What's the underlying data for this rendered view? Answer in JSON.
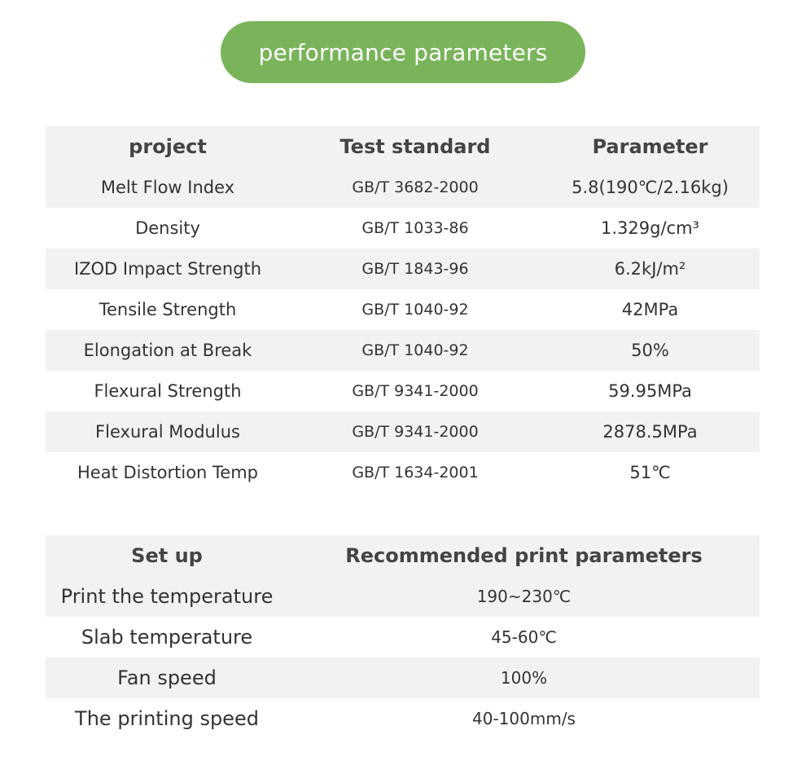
{
  "title": "performance parameters",
  "accent_color": "#79b45a",
  "performance_table": {
    "headers": [
      "project",
      "Test standard",
      "Parameter"
    ],
    "rows": [
      [
        "Melt Flow Index",
        "GB/T 3682-2000",
        "5.8(190℃/2.16kg)"
      ],
      [
        "Density",
        "GB/T 1033-86",
        "1.329g/cm³"
      ],
      [
        "IZOD Impact Strength",
        "GB/T 1843-96",
        "6.2kJ/m²"
      ],
      [
        "Tensile Strength",
        "GB/T 1040-92",
        "42MPa"
      ],
      [
        "Elongation at Break",
        "GB/T 1040-92",
        "50%"
      ],
      [
        "Flexural Strength",
        "GB/T 9341-2000",
        "59.95MPa"
      ],
      [
        "Flexural Modulus",
        "GB/T 9341-2000",
        "2878.5MPa"
      ],
      [
        "Heat Distortion Temp",
        "GB/T 1634-2001",
        "51℃"
      ]
    ]
  },
  "print_table": {
    "headers": [
      "Set up",
      "Recommended print parameters"
    ],
    "rows": [
      [
        "Print the temperature",
        "190~230℃"
      ],
      [
        "Slab temperature",
        "45-60℃"
      ],
      [
        "Fan speed",
        "100%"
      ],
      [
        "The printing speed",
        "40-100mm/s"
      ]
    ]
  }
}
